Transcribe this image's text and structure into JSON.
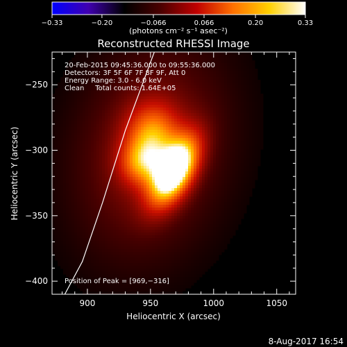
{
  "chart_data": {
    "type": "heatmap",
    "title": "Reconstructed RHESSI Image",
    "xlabel": "Heliocentric X (arcsec)",
    "ylabel": "Heliocentric Y (arcsec)",
    "xlim": [
      872,
      1065
    ],
    "ylim": [
      -410,
      -225
    ],
    "x_ticks": [
      900,
      950,
      1000,
      1050
    ],
    "x_tick_labels": [
      "900",
      "950",
      "1000",
      "1050"
    ],
    "y_ticks": [
      -250,
      -300,
      -350,
      -400
    ],
    "y_tick_labels": [
      "−250",
      "−300",
      "−350",
      "−400"
    ],
    "colorbar": {
      "range": [
        -0.33,
        0.33
      ],
      "ticks": [
        -0.33,
        -0.2,
        -0.066,
        0.066,
        0.2,
        0.33
      ],
      "tick_labels": [
        "−0.33",
        "−0.20",
        "−0.066",
        "0.066",
        "0.20",
        "0.33"
      ],
      "label": "(photons cm⁻² s⁻¹ asec⁻²)",
      "colors": [
        "#0000ff",
        "#4000b0",
        "#000000",
        "#4a0000",
        "#c00000",
        "#ff7000",
        "#ffd000",
        "#ffffff"
      ]
    },
    "sources": [
      {
        "x": 969,
        "y": -316,
        "peak": 0.33,
        "sx": 10,
        "sy": 20,
        "angle_deg": -30
      },
      {
        "x": 952,
        "y": -288,
        "peak": 0.16,
        "sx": 14,
        "sy": 16,
        "angle_deg": 0
      },
      {
        "x": 943,
        "y": -310,
        "peak": 0.14,
        "sx": 12,
        "sy": 12,
        "angle_deg": 0
      },
      {
        "x": 950,
        "y": -300,
        "peak": 0.11,
        "sx": 42,
        "sy": 60,
        "angle_deg": -15
      }
    ],
    "limb": [
      {
        "x": 953,
        "y": -225
      },
      {
        "x": 930,
        "y": -285
      },
      {
        "x": 912,
        "y": -340
      },
      {
        "x": 896,
        "y": -385
      },
      {
        "x": 881,
        "y": -412
      }
    ],
    "annotations": [
      "20-Feb-2015 09:45:36.000 to 09:55:36.000",
      "Detectors: 3F 5F 6F 7F 8F 9F, Att 0",
      "Energy Range: 3.0 - 6.0 keV",
      "Clean     Total counts: 1.64E+05"
    ],
    "peak_label": "Position of Peak = [969,−316]"
  },
  "footer": {
    "timestamp": "8-Aug-2017 16:54"
  }
}
